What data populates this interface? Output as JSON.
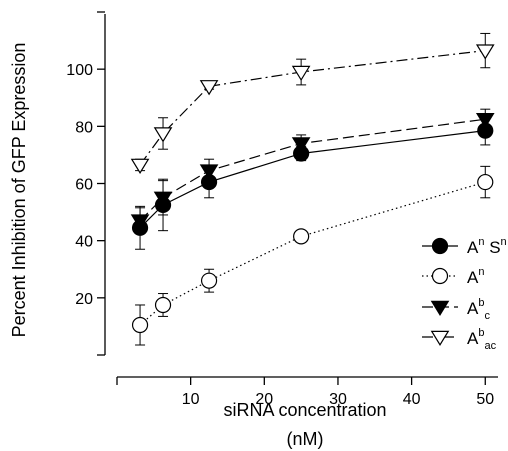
{
  "chart_data": {
    "type": "line",
    "xlabel": "siRNA concentration",
    "xlabel_unit": "(nM)",
    "ylabel": "Percent Inhibition of GFP Expression",
    "xlim": [
      0,
      52
    ],
    "ylim": [
      0,
      120
    ],
    "x_ticks": [
      10,
      20,
      30,
      40,
      50
    ],
    "y_ticks": [
      20,
      40,
      60,
      80,
      100
    ],
    "grid": false,
    "legend_position": "bottom-right",
    "series": [
      {
        "name": "AnSn",
        "base": "A",
        "sup": "n",
        "base2": "S",
        "sup2": "n",
        "sub": "",
        "marker": "circle-filled",
        "line": "solid",
        "x": [
          3.13,
          6.25,
          12.5,
          25,
          50
        ],
        "y": [
          44.5,
          52.5,
          60.5,
          70.5,
          78.5
        ],
        "err": [
          7.5,
          9,
          5.5,
          2.5,
          5
        ]
      },
      {
        "name": "An",
        "base": "A",
        "sup": "n",
        "sub": "",
        "marker": "circle-open",
        "line": "dotted",
        "x": [
          3.13,
          6.25,
          12.5,
          25,
          50
        ],
        "y": [
          10.5,
          17.5,
          26,
          41.5,
          60.5
        ],
        "err": [
          7,
          4,
          4,
          0,
          5.5
        ]
      },
      {
        "name": "Abc",
        "base": "A",
        "sup": "b",
        "sub": "c",
        "marker": "triangle-down-filled",
        "line": "dashed",
        "x": [
          3.13,
          6.25,
          12.5,
          25,
          50
        ],
        "y": [
          47,
          55,
          64.5,
          74,
          82.5
        ],
        "err": [
          4.5,
          6,
          4,
          3,
          3.5
        ]
      },
      {
        "name": "Abac",
        "base": "A",
        "sup": "b",
        "sub": "ac",
        "marker": "triangle-down-open",
        "line": "dashdot",
        "x": [
          3.13,
          6.25,
          12.5,
          25,
          50
        ],
        "y": [
          66.5,
          77.5,
          94,
          99,
          106.5
        ],
        "err": [
          2,
          5.5,
          1,
          4.5,
          6
        ]
      }
    ]
  }
}
